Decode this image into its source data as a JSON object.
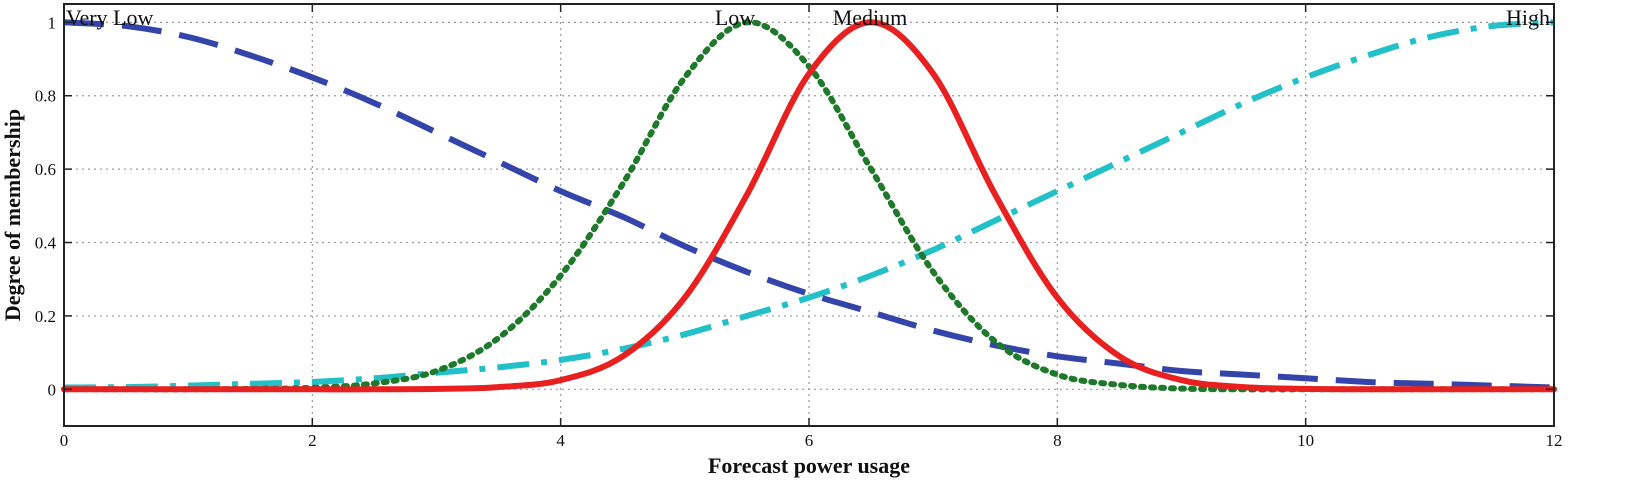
{
  "chart_data": {
    "type": "line",
    "xlabel": "Forecast power usage",
    "ylabel": "Degree of membership",
    "xlim": [
      0,
      12
    ],
    "ylim": [
      -0.1,
      1.05
    ],
    "grid": true,
    "x_ticks": [
      "0",
      "2",
      "4",
      "6",
      "8",
      "10",
      "12"
    ],
    "y_ticks": [
      "0",
      "0.2",
      "0.4",
      "0.6",
      "0.8",
      "1"
    ],
    "x_tick_values": [
      0,
      2,
      4,
      6,
      8,
      10,
      12
    ],
    "y_tick_values": [
      0,
      0.2,
      0.4,
      0.6,
      0.8,
      1
    ],
    "series": [
      {
        "name": "Very Low",
        "color": "#3344aa",
        "style": "dashed",
        "x": [
          0,
          0.5,
          1,
          1.5,
          2,
          2.5,
          3,
          3.5,
          4,
          4.5,
          5,
          5.5,
          6,
          6.5,
          7,
          7.5,
          8,
          8.5,
          9,
          9.5,
          10,
          10.5,
          11,
          11.5,
          12
        ],
        "y": [
          1.0,
          0.99,
          0.96,
          0.91,
          0.85,
          0.78,
          0.7,
          0.62,
          0.54,
          0.47,
          0.39,
          0.32,
          0.26,
          0.21,
          0.16,
          0.12,
          0.09,
          0.07,
          0.05,
          0.04,
          0.03,
          0.02,
          0.015,
          0.01,
          0.005
        ]
      },
      {
        "name": "Low",
        "color": "#1e7a2a",
        "style": "dotted",
        "x": [
          0,
          0.5,
          1,
          1.5,
          2,
          2.5,
          3,
          3.5,
          4,
          4.5,
          5,
          5.5,
          6,
          6.5,
          7,
          7.5,
          8,
          8.5,
          9,
          9.5,
          10,
          10.5,
          11,
          11.5,
          12
        ],
        "y": [
          0.0,
          0.0,
          0.0,
          0.001,
          0.004,
          0.016,
          0.05,
          0.14,
          0.31,
          0.56,
          0.85,
          1.0,
          0.88,
          0.6,
          0.32,
          0.13,
          0.04,
          0.012,
          0.002,
          0.0,
          0.0,
          0.0,
          0.0,
          0.0,
          0.0
        ]
      },
      {
        "name": "Medium",
        "color": "#e82020",
        "style": "solid",
        "x": [
          0,
          0.5,
          1,
          1.5,
          2,
          2.5,
          3,
          3.5,
          4,
          4.5,
          5,
          5.5,
          6,
          6.5,
          7,
          7.5,
          8,
          8.5,
          9,
          9.5,
          10,
          10.5,
          11,
          11.5,
          12
        ],
        "y": [
          0.0,
          0.0,
          0.0,
          0.0,
          0.0,
          0.0,
          0.001,
          0.006,
          0.025,
          0.09,
          0.25,
          0.53,
          0.86,
          1.0,
          0.86,
          0.53,
          0.25,
          0.09,
          0.025,
          0.006,
          0.001,
          0.0,
          0.0,
          0.0,
          0.0
        ]
      },
      {
        "name": "High",
        "color": "#22c0c8",
        "style": "dashdot",
        "x": [
          0,
          0.5,
          1,
          1.5,
          2,
          2.5,
          3,
          3.5,
          4,
          4.5,
          5,
          5.5,
          6,
          6.5,
          7,
          7.5,
          8,
          8.5,
          9,
          9.5,
          10,
          10.5,
          11,
          11.5,
          12
        ],
        "y": [
          0.005,
          0.006,
          0.01,
          0.015,
          0.02,
          0.03,
          0.045,
          0.06,
          0.08,
          0.11,
          0.15,
          0.2,
          0.25,
          0.31,
          0.38,
          0.46,
          0.54,
          0.62,
          0.7,
          0.78,
          0.85,
          0.91,
          0.96,
          0.99,
          1.0
        ]
      }
    ]
  }
}
